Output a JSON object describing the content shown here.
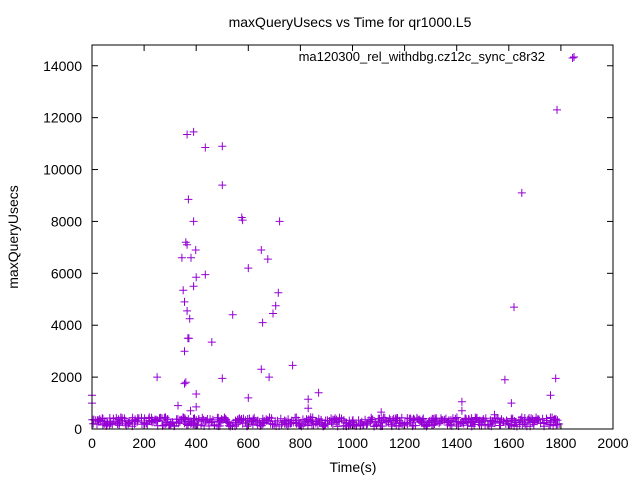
{
  "chart_data": {
    "type": "scatter",
    "title": "maxQueryUsecs vs Time for qr1000.L5",
    "xlabel": "Time(s)",
    "ylabel": "maxQueryUsecs",
    "xlim": [
      0,
      2000
    ],
    "ylim": [
      0,
      14800
    ],
    "x_ticks": [
      0,
      200,
      400,
      600,
      800,
      1000,
      1200,
      1400,
      1600,
      1800,
      2000
    ],
    "y_ticks": [
      0,
      2000,
      4000,
      6000,
      8000,
      10000,
      12000,
      14000
    ],
    "grid": false,
    "legend_position": "top-right",
    "series": [
      {
        "name": "ma120300_rel_withdbg.cz12c_sync_c8r32",
        "color": "#9400d3",
        "marker": "plus",
        "outliers": [
          [
            0,
            1300
          ],
          [
            0,
            1000
          ],
          [
            250,
            2000
          ],
          [
            330,
            900
          ],
          [
            345,
            6600
          ],
          [
            350,
            5350
          ],
          [
            355,
            4900
          ],
          [
            355,
            3000
          ],
          [
            355,
            1750
          ],
          [
            360,
            7200
          ],
          [
            360,
            1800
          ],
          [
            365,
            11350
          ],
          [
            365,
            7100
          ],
          [
            365,
            4550
          ],
          [
            368,
            3500
          ],
          [
            370,
            8850
          ],
          [
            372,
            3500
          ],
          [
            375,
            4250
          ],
          [
            378,
            700
          ],
          [
            380,
            6600
          ],
          [
            390,
            11450
          ],
          [
            390,
            8000
          ],
          [
            390,
            5500
          ],
          [
            398,
            6900
          ],
          [
            400,
            5850
          ],
          [
            400,
            1350
          ],
          [
            400,
            850
          ],
          [
            435,
            10850
          ],
          [
            435,
            5950
          ],
          [
            460,
            3350
          ],
          [
            500,
            10900
          ],
          [
            500,
            9400
          ],
          [
            500,
            1950
          ],
          [
            540,
            4400
          ],
          [
            575,
            8150
          ],
          [
            578,
            8050
          ],
          [
            600,
            6200
          ],
          [
            600,
            1200
          ],
          [
            650,
            6900
          ],
          [
            650,
            2300
          ],
          [
            655,
            4100
          ],
          [
            675,
            6550
          ],
          [
            680,
            2000
          ],
          [
            695,
            4450
          ],
          [
            705,
            4750
          ],
          [
            715,
            5250
          ],
          [
            720,
            8000
          ],
          [
            770,
            2450
          ],
          [
            830,
            1150
          ],
          [
            830,
            800
          ],
          [
            870,
            1400
          ],
          [
            1110,
            650
          ],
          [
            1420,
            1050
          ],
          [
            1420,
            700
          ],
          [
            1545,
            550
          ],
          [
            1585,
            1900
          ],
          [
            1610,
            1000
          ],
          [
            1620,
            4700
          ],
          [
            1650,
            9100
          ],
          [
            1760,
            1300
          ],
          [
            1780,
            1950
          ],
          [
            1785,
            12300
          ],
          [
            1845,
            14300
          ]
        ],
        "baseline": {
          "x_start": 0,
          "x_end": 1790,
          "x_step": 5,
          "typical_min": 100,
          "typical_max": 450
        }
      }
    ]
  }
}
